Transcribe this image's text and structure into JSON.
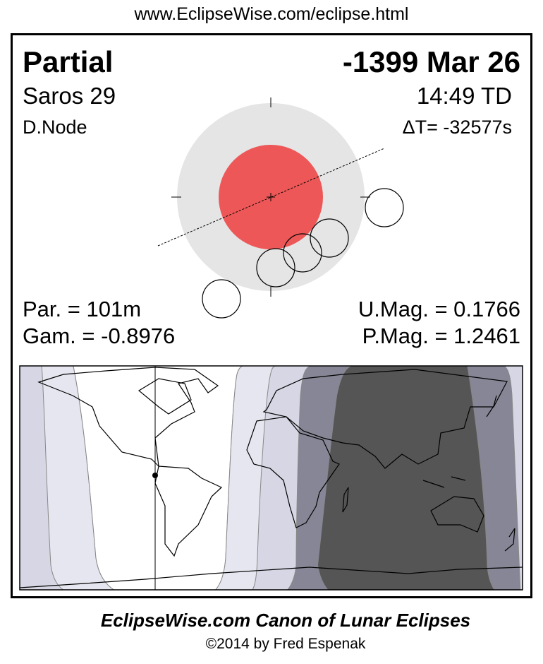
{
  "header": {
    "url": "www.EclipseWise.com/eclipse.html"
  },
  "eclipse": {
    "type": "Partial",
    "date": "-1399 Mar 26",
    "saros": "Saros  29",
    "time": "14:49 TD",
    "node": "D.Node",
    "delta_t": "ΔT= -32577s",
    "partial_duration": "Par. = 101m",
    "gamma": "Gam. = -0.8976",
    "umbral_magnitude": "U.Mag. = 0.1766",
    "penumbral_magnitude": "P.Mag. = 1.2461"
  },
  "colors": {
    "umbra": "#ee5757",
    "penumbra": "#e5e5e5",
    "map_light": "#e6e6f0",
    "map_lavender": "#d6d6e4",
    "map_medium": "#868696",
    "map_dark": "#555555"
  },
  "footer": {
    "title": "EclipseWise.com Canon of Lunar Eclipses",
    "copyright": "©2014 by Fred Espenak"
  }
}
